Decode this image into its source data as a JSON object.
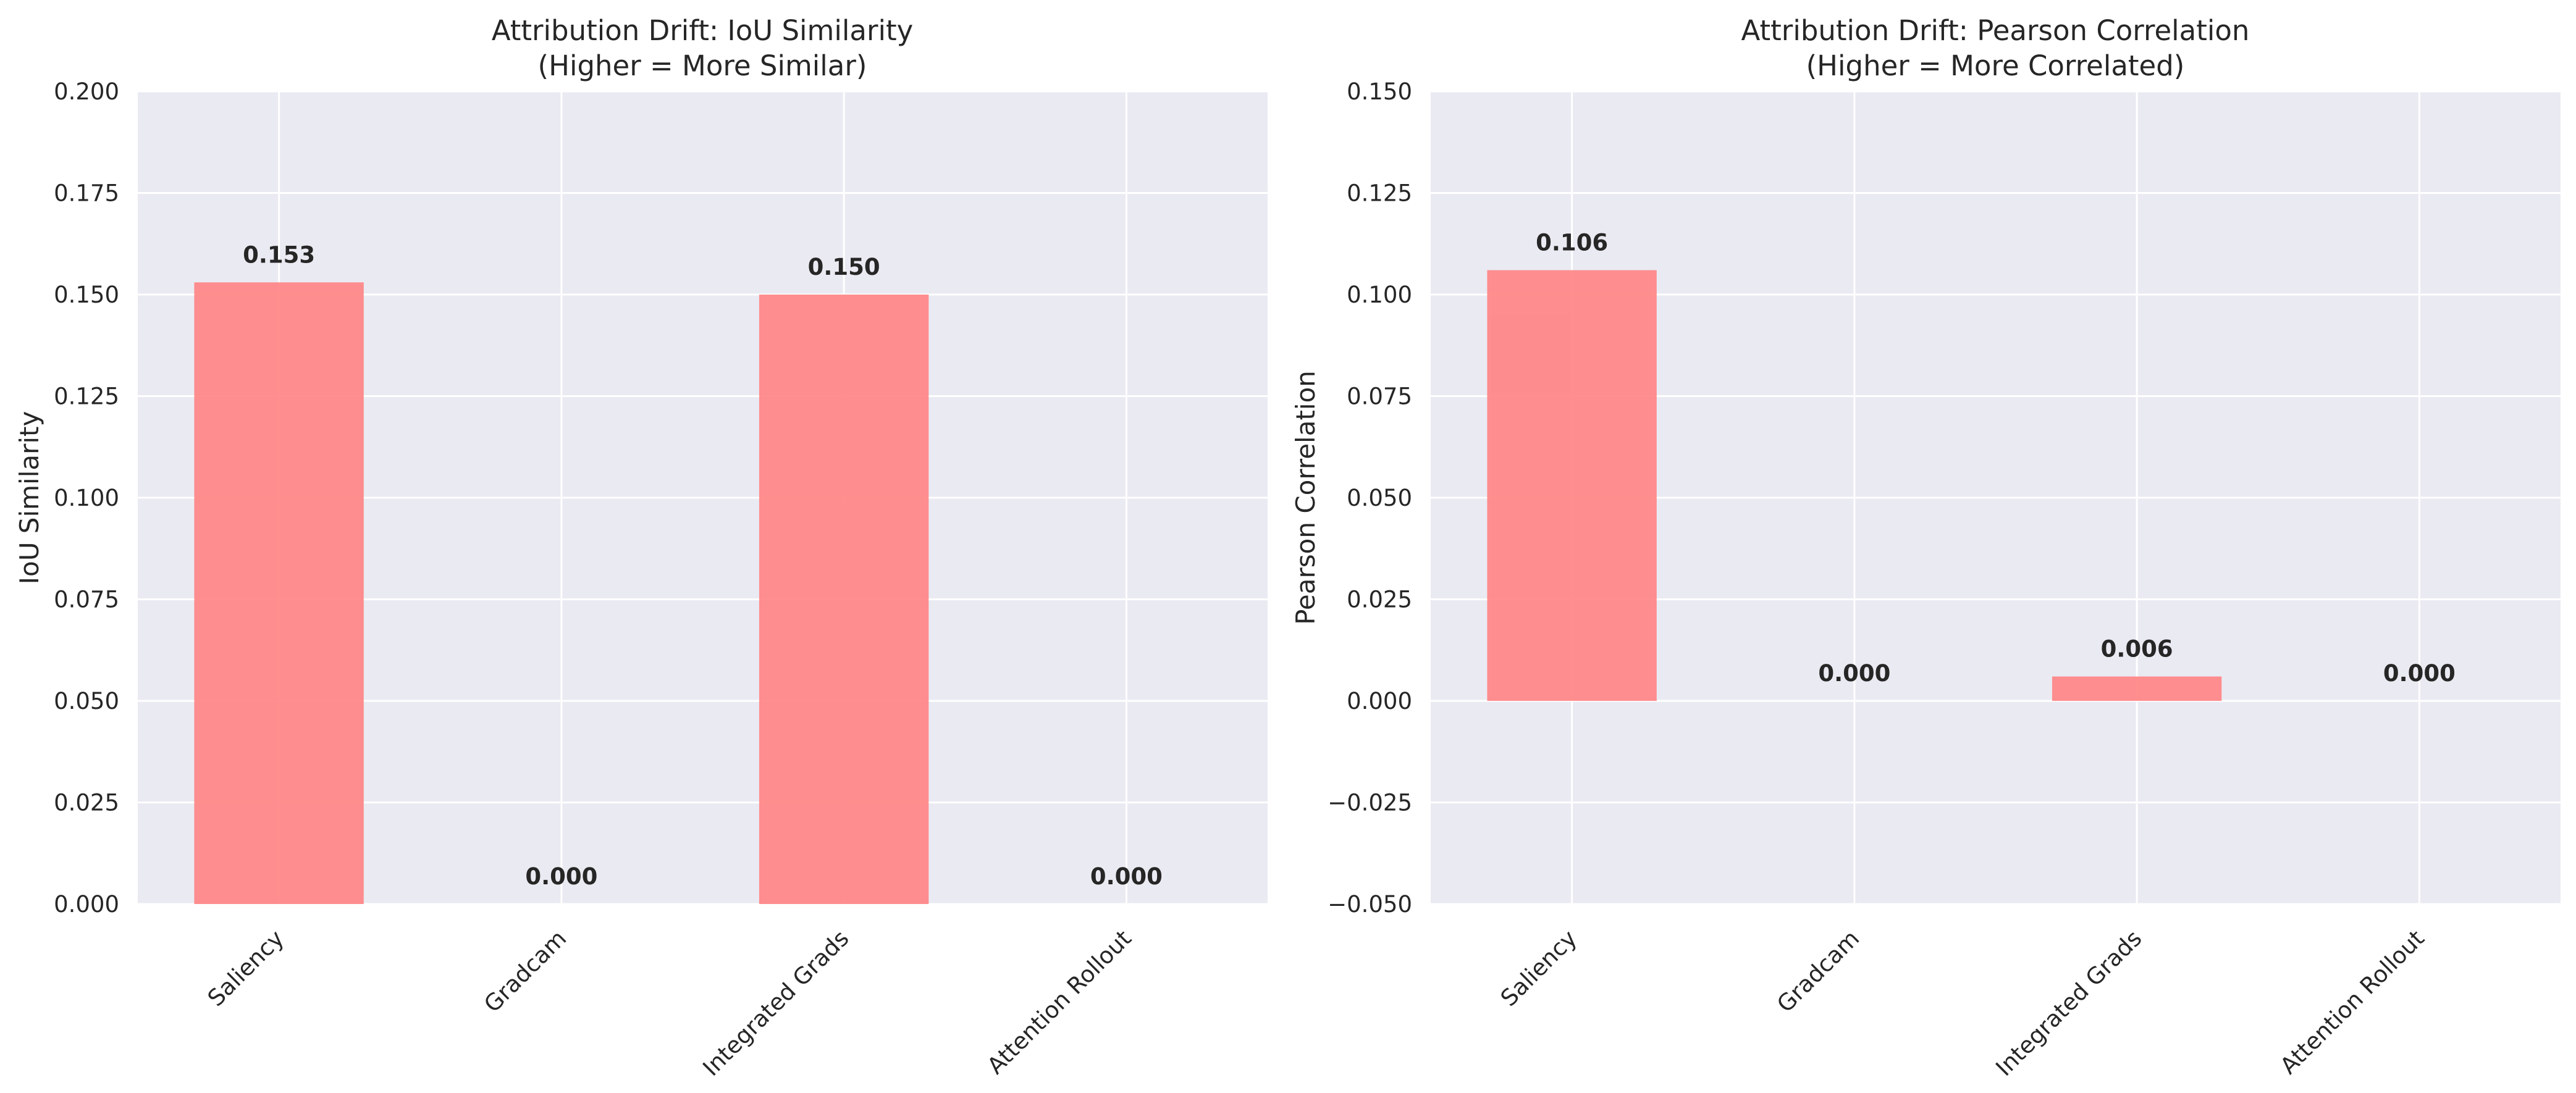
{
  "chart_data": [
    {
      "type": "bar",
      "title": "Attribution Drift: IoU Similarity",
      "subtitle": "(Higher = More Similar)",
      "xlabel": "",
      "ylabel": "IoU Similarity",
      "categories": [
        "Saliency",
        "Gradcam",
        "Integrated Grads",
        "Attention Rollout"
      ],
      "values": [
        0.153,
        0.0,
        0.15,
        0.0
      ],
      "data_labels": [
        "0.153",
        "0.000",
        "0.150",
        "0.000"
      ],
      "ylim": [
        0,
        0.2
      ],
      "yticks": [
        0.0,
        0.025,
        0.05,
        0.075,
        0.1,
        0.125,
        0.15,
        0.175,
        0.2
      ],
      "ytick_labels": [
        "0.000",
        "0.025",
        "0.050",
        "0.075",
        "0.100",
        "0.125",
        "0.150",
        "0.175",
        "0.200"
      ],
      "grid": true,
      "bar_color": "#ff7f7f",
      "bg_color": "#eaeaf2"
    },
    {
      "type": "bar",
      "title": "Attribution Drift: Pearson Correlation",
      "subtitle": "(Higher = More Correlated)",
      "xlabel": "",
      "ylabel": "Pearson Correlation",
      "categories": [
        "Saliency",
        "Gradcam",
        "Integrated Grads",
        "Attention Rollout"
      ],
      "values": [
        0.106,
        0.0,
        0.006,
        0.0
      ],
      "data_labels": [
        "0.106",
        "0.000",
        "0.006",
        "0.000"
      ],
      "ylim": [
        -0.05,
        0.15
      ],
      "yticks": [
        -0.05,
        -0.025,
        0.0,
        0.025,
        0.05,
        0.075,
        0.1,
        0.125,
        0.15
      ],
      "ytick_labels": [
        "−0.050",
        "−0.025",
        "0.000",
        "0.025",
        "0.050",
        "0.075",
        "0.100",
        "0.125",
        "0.150"
      ],
      "grid": true,
      "bar_color": "#ff7f7f",
      "bg_color": "#eaeaf2"
    }
  ]
}
